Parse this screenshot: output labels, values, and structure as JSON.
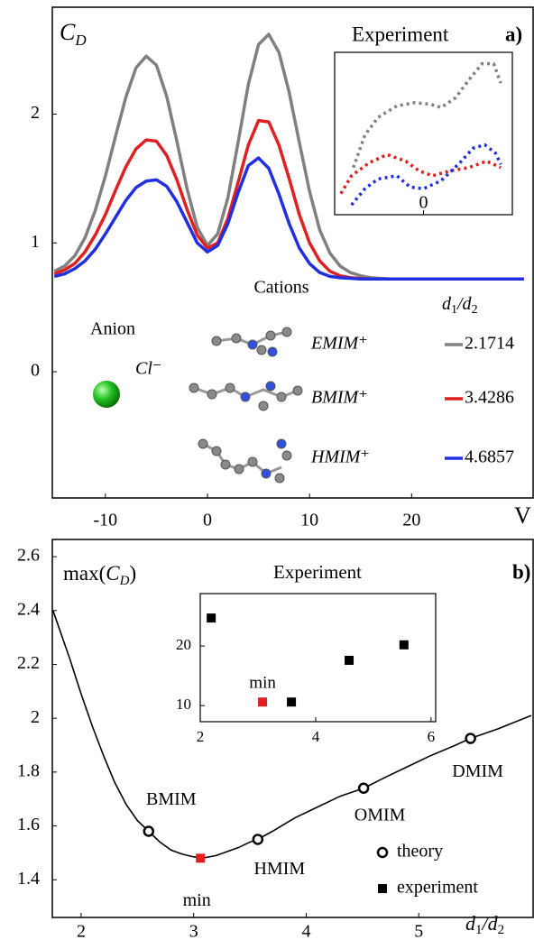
{
  "chart_data": [
    {
      "type": "line",
      "title": "Experiment",
      "panel_label": "a)",
      "y_label": [
        "C",
        "D"
      ],
      "x_label": "V",
      "legend_title": "Cations",
      "ratio_label": [
        "d",
        "1",
        "/d",
        "2"
      ],
      "anion_title": "Anion",
      "anion": "Cl⁻",
      "xlim": [
        -15.2,
        31.9
      ],
      "ylim": [
        -0.98,
        2.83
      ],
      "xticks": [
        -10,
        0,
        10,
        20
      ],
      "yticks": [
        0,
        1,
        2
      ],
      "x": [
        -15,
        -14,
        -13,
        -12,
        -11,
        -10,
        -9,
        -8,
        -7,
        -6,
        -5,
        -4,
        -3,
        -2,
        -1,
        0,
        1,
        2,
        3,
        4,
        5,
        6,
        7,
        8,
        9,
        10,
        11,
        12,
        13,
        14,
        15,
        16,
        17,
        18,
        19,
        20,
        21,
        22,
        23,
        24,
        25,
        26,
        27,
        28,
        29,
        30,
        31
      ],
      "series": [
        {
          "name": "EMIM⁺",
          "color": "#808080",
          "ratio": 2.1714,
          "values": [
            0.78,
            0.82,
            0.9,
            1.04,
            1.25,
            1.52,
            1.83,
            2.13,
            2.36,
            2.45,
            2.38,
            2.14,
            1.79,
            1.42,
            1.12,
            0.98,
            1.07,
            1.35,
            1.78,
            2.23,
            2.54,
            2.62,
            2.48,
            2.17,
            1.78,
            1.4,
            1.1,
            0.92,
            0.82,
            0.77,
            0.745,
            0.73,
            0.725,
            0.72,
            0.72,
            0.72,
            0.72,
            0.72,
            0.72,
            0.72,
            0.72,
            0.72,
            0.72,
            0.72,
            0.72,
            0.72,
            0.72
          ]
        },
        {
          "name": "BMIM⁺",
          "color": "#e02020",
          "ratio": 3.4286,
          "values": [
            0.76,
            0.79,
            0.84,
            0.93,
            1.06,
            1.22,
            1.41,
            1.59,
            1.73,
            1.8,
            1.79,
            1.68,
            1.49,
            1.26,
            1.06,
            0.96,
            1.0,
            1.19,
            1.47,
            1.76,
            1.95,
            1.94,
            1.76,
            1.5,
            1.22,
            1.0,
            0.86,
            0.78,
            0.745,
            0.73,
            0.725,
            0.72,
            0.72,
            0.72,
            0.72,
            0.72,
            0.72,
            0.72,
            0.72,
            0.72,
            0.72,
            0.72,
            0.72,
            0.72,
            0.72,
            0.72,
            0.72
          ]
        },
        {
          "name": "HMIM⁺",
          "color": "#2030e0",
          "ratio": 4.6857,
          "values": [
            0.74,
            0.76,
            0.8,
            0.86,
            0.95,
            1.07,
            1.2,
            1.33,
            1.43,
            1.48,
            1.49,
            1.44,
            1.32,
            1.16,
            1.0,
            0.93,
            0.98,
            1.15,
            1.39,
            1.6,
            1.66,
            1.58,
            1.38,
            1.15,
            0.96,
            0.84,
            0.77,
            0.74,
            0.73,
            0.725,
            0.72,
            0.72,
            0.72,
            0.72,
            0.72,
            0.72,
            0.72,
            0.72,
            0.72,
            0.72,
            0.72,
            0.72,
            0.72,
            0.72,
            0.72,
            0.72,
            0.72
          ]
        }
      ]
    },
    {
      "type": "line",
      "line_style": "dotted",
      "xlim": [
        -1,
        1
      ],
      "ylim": [
        0,
        1
      ],
      "xticks": [
        0
      ],
      "series": [
        {
          "color": "#808080",
          "x": [
            -0.79,
            -0.66,
            -0.51,
            -0.3,
            -0.1,
            0.08,
            0.2,
            0.36,
            0.51,
            0.66,
            0.79,
            0.87
          ],
          "values": [
            0.29,
            0.49,
            0.6,
            0.67,
            0.69,
            0.68,
            0.66,
            0.72,
            0.83,
            0.93,
            0.93,
            0.81
          ]
        },
        {
          "color": "#e02020",
          "x": [
            -0.93,
            -0.81,
            -0.61,
            -0.41,
            -0.2,
            -0.05,
            0.1,
            0.3,
            0.51,
            0.71,
            0.87
          ],
          "values": [
            0.13,
            0.24,
            0.32,
            0.37,
            0.33,
            0.27,
            0.24,
            0.27,
            0.29,
            0.33,
            0.29
          ]
        },
        {
          "color": "#2030e0",
          "x": [
            -0.81,
            -0.66,
            -0.51,
            -0.3,
            -0.15,
            0,
            0.2,
            0.41,
            0.56,
            0.69,
            0.81,
            0.87
          ],
          "values": [
            0.06,
            0.16,
            0.22,
            0.24,
            0.17,
            0.16,
            0.21,
            0.32,
            0.41,
            0.43,
            0.38,
            0.31
          ]
        }
      ]
    },
    {
      "type": "scatter",
      "title": "Experiment",
      "panel_label": "b)",
      "y_label": [
        "max(",
        "C",
        "D",
        ")"
      ],
      "x_label": [
        "d",
        "1",
        "/d",
        "2"
      ],
      "xlim": [
        1.744,
        6.016
      ],
      "ylim": [
        1.26,
        2.664
      ],
      "xticks": [
        2,
        3,
        4,
        5
      ],
      "yticks": [
        1.4,
        1.6,
        1.8,
        2,
        2.2,
        2.4,
        2.6
      ],
      "curve": {
        "color": "#000000",
        "x": [
          1.75,
          1.9,
          2.0,
          2.1,
          2.2,
          2.3,
          2.4,
          2.5,
          2.6,
          2.7,
          2.8,
          2.9,
          3.0,
          3.1,
          3.2,
          3.3,
          3.4,
          3.5,
          3.57,
          3.7,
          3.9,
          4.1,
          4.3,
          4.51,
          4.7,
          4.9,
          5.1,
          5.3,
          5.46,
          5.7,
          6.0
        ],
        "values": [
          2.4,
          2.22,
          2.09,
          1.97,
          1.86,
          1.76,
          1.68,
          1.62,
          1.58,
          1.54,
          1.51,
          1.495,
          1.485,
          1.482,
          1.49,
          1.505,
          1.52,
          1.54,
          1.55,
          1.58,
          1.63,
          1.67,
          1.71,
          1.74,
          1.78,
          1.82,
          1.86,
          1.895,
          1.925,
          1.96,
          2.01
        ]
      },
      "series": [
        {
          "name": "theory",
          "marker": "circle",
          "color": "#000000",
          "x": [
            2.6,
            3.57,
            4.51,
            5.46
          ],
          "values": [
            1.58,
            1.55,
            1.74,
            1.925
          ],
          "labels": [
            "BMIM",
            "HMIM",
            "OMIM",
            "DMIM"
          ]
        },
        {
          "name": "experiment",
          "marker": "square",
          "color": "#e02020",
          "legend_color": "#000000",
          "x": [
            3.06
          ],
          "values": [
            1.48
          ],
          "labels": [
            "min"
          ],
          "label_color": "#2a3bd8"
        }
      ]
    },
    {
      "type": "scatter",
      "xlim": [
        2,
        6.08
      ],
      "ylim": [
        7.3,
        28.8
      ],
      "xticks": [
        2,
        4,
        6
      ],
      "yticks": [
        10,
        20
      ],
      "series": [
        {
          "marker": "square",
          "color": "#000000",
          "x": [
            2.19,
            3.58,
            4.58,
            5.53
          ],
          "values": [
            24.7,
            10.6,
            17.6,
            20.2
          ]
        },
        {
          "marker": "square",
          "color": "#e02020",
          "x": [
            3.08
          ],
          "values": [
            10.6
          ],
          "labels": [
            "min"
          ],
          "label_color": "#2a3bd8"
        }
      ]
    }
  ]
}
